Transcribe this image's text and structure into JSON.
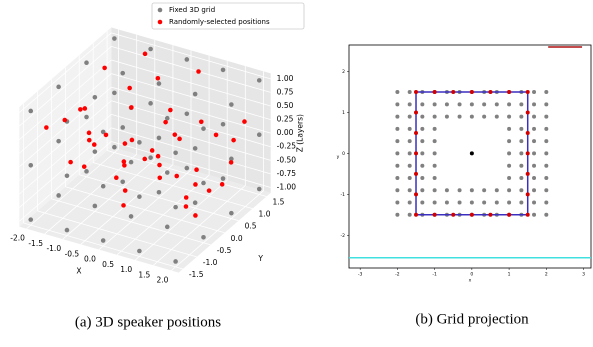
{
  "chart_data": [
    {
      "type": "scatter3d",
      "caption": "(a) 3D speaker positions",
      "xlabel": "X",
      "ylabel": "Y",
      "zlabel": "Z (Layers)",
      "legend": "upper right",
      "xlim": [
        -2.2,
        2.2
      ],
      "ylim": [
        -1.65,
        1.65
      ],
      "zlim": [
        -1.1,
        1.1
      ],
      "xticks": [
        {
          "value": -2,
          "label": "-2.0"
        },
        -1.5,
        {
          "value": -1,
          "label": "-1.0"
        },
        -0.5,
        {
          "value": 0,
          "label": "0.0"
        },
        0.5,
        {
          "value": 1,
          "label": "1.0"
        },
        1.5,
        {
          "value": 2,
          "label": "2.0"
        }
      ],
      "yticks": [
        -1.5,
        {
          "value": -1,
          "label": "-1.0"
        },
        -0.5,
        {
          "value": 0,
          "label": "0.0"
        },
        0.5,
        {
          "value": 1,
          "label": "1.0"
        },
        1.5
      ],
      "zticks": [
        {
          "value": -1,
          "label": "-1.00"
        },
        -0.75,
        {
          "value": -0.5,
          "label": "-0.50"
        },
        -0.25,
        {
          "value": 0,
          "label": "0.00"
        },
        0.25,
        {
          "value": 0.5,
          "label": "0.50"
        },
        0.75,
        {
          "value": 1,
          "label": "1.00"
        }
      ],
      "series": [
        {
          "name": "Fixed 3D grid",
          "color": "#808080",
          "x": [
            -2,
            -1,
            0,
            1,
            2,
            -2,
            -1,
            0,
            1,
            2,
            -2,
            -1,
            0,
            1,
            2,
            -2,
            -1,
            0,
            1,
            2,
            -2,
            -1,
            0,
            1,
            2,
            -2,
            -1,
            0,
            1,
            2,
            -2,
            -1,
            0,
            1,
            2,
            -2,
            -1,
            0,
            1,
            2,
            -2,
            -1,
            0,
            1,
            2,
            -2,
            -1,
            0,
            1,
            2,
            -2,
            -1,
            0,
            1,
            2,
            -2,
            -1,
            0,
            1,
            2
          ],
          "y": [
            -1.5,
            -1.5,
            -1.5,
            -1.5,
            -1.5,
            -0.5,
            -0.5,
            -0.5,
            -0.5,
            -0.5,
            0.5,
            0.5,
            0.5,
            0.5,
            0.5,
            1.5,
            1.5,
            1.5,
            1.5,
            1.5,
            -1.5,
            -1.5,
            -1.5,
            -1.5,
            -1.5,
            -0.5,
            -0.5,
            -0.5,
            -0.5,
            -0.5,
            0.5,
            0.5,
            0.5,
            0.5,
            0.5,
            1.5,
            1.5,
            1.5,
            1.5,
            1.5,
            -1.5,
            -1.5,
            -1.5,
            -1.5,
            -1.5,
            -0.5,
            -0.5,
            -0.5,
            -0.5,
            -0.5,
            0.5,
            0.5,
            0.5,
            0.5,
            0.5,
            1.5,
            1.5,
            1.5,
            1.5,
            1.5
          ],
          "z": [
            -1,
            -1,
            -1,
            -1,
            -1,
            -1,
            -1,
            -1,
            -1,
            -1,
            -1,
            -1,
            -1,
            -1,
            -1,
            -1,
            -1,
            -1,
            -1,
            -1,
            0,
            0,
            0,
            0,
            0,
            0,
            0,
            0,
            0,
            0,
            0,
            0,
            0,
            0,
            0,
            0,
            0,
            0,
            0,
            0,
            1,
            1,
            1,
            1,
            1,
            1,
            1,
            1,
            1,
            1,
            1,
            1,
            1,
            1,
            1,
            1,
            1,
            1,
            1,
            1
          ]
        },
        {
          "name": "Randomly-selected positions",
          "color": "#ff0000",
          "x": [
            -1.8,
            -1.2,
            0.4,
            1.6,
            -0.6,
            0.9,
            1.9,
            -1.5,
            0.1,
            -0.3,
            1.2,
            -1.9,
            0.7,
            1.4,
            -1.0,
            0.3,
            -0.8,
            1.7,
            -1.3,
            0.6,
            -0.1,
            1.0,
            -1.6,
            0.8,
            1.3,
            -0.5,
            0.2,
            -1.1,
            1.8,
            -0.9,
            0.5,
            -1.4,
            1.1,
            -0.2,
            1.5,
            -1.7,
            0.0,
            0.9,
            -0.7,
            1.6,
            -1.2,
            0.4,
            -0.4,
            1.9,
            -1.0
          ],
          "y": [
            -1.2,
            0.8,
            1.4,
            -0.6,
            -1.4,
            0.3,
            1.1,
            0.5,
            -0.9,
            1.3,
            -1.3,
            -0.2,
            0.9,
            0.2,
            -0.7,
            -1.1,
            1.5,
            -0.4,
            1.2,
            -1.5,
            0.6,
            1.0,
            -0.8,
            -0.3,
            1.4,
            0.1,
            -1.0,
            0.4,
            -1.2,
            0.7,
            1.2,
            -0.5,
            -0.9,
            1.5,
            0.6,
            0.2,
            -1.4,
            -0.1,
            0.9,
            1.1,
            -0.6,
            0.0,
            -1.3,
            0.3,
            1.3
          ],
          "z": [
            0.6,
            -0.8,
            0.9,
            -0.3,
            0.2,
            -1.0,
            0.4,
            1.0,
            -0.6,
            0.1,
            0.8,
            -0.5,
            -0.9,
            0.7,
            0.3,
            -0.2,
            0.5,
            -0.7,
            0.0,
            0.9,
            -0.4,
            -1.0,
            0.6,
            0.8,
            -0.6,
            1.0,
            0.2,
            -0.9,
            0.4,
            -0.3,
            -0.8,
            0.7,
            0.1,
            -0.5,
            0.3,
            -0.1,
            0.9,
            0.5,
            -0.7,
            0.0,
            0.8,
            -0.2,
            0.6,
            -0.4,
            1.0
          ]
        }
      ]
    },
    {
      "type": "scatter",
      "caption": "(b) Grid projection",
      "xlabel": "x",
      "ylabel": "y",
      "xlim": [
        -3.3,
        3.2
      ],
      "ylim": [
        -2.8,
        2.65
      ],
      "xticks": [
        -3,
        -2,
        -1,
        0,
        1,
        2,
        3
      ],
      "yticks": [
        -2,
        -1,
        0,
        1,
        2
      ],
      "series": [
        {
          "kind": "points",
          "color": "#808080",
          "x": [
            -2,
            -1.67,
            -1.33,
            -1,
            -0.67,
            -0.33,
            0,
            0.33,
            0.67,
            1,
            1.33,
            1.67,
            2,
            -2,
            -1.67,
            -1.33,
            -1,
            -0.67,
            -0.33,
            0,
            0.33,
            0.67,
            1,
            1.33,
            1.67,
            2,
            -2,
            -1.67,
            -1.33,
            -1,
            -0.67,
            -0.33,
            0,
            0.33,
            0.67,
            1,
            1.33,
            1.67,
            2,
            -2,
            -1.67,
            -1.33,
            -1,
            1,
            1.33,
            1.67,
            2,
            -2,
            -1.67,
            -1.33,
            -1,
            1,
            1.33,
            1.67,
            2,
            -2,
            -1.67,
            -1.33,
            -1,
            1,
            1.33,
            1.67,
            2,
            -2,
            -1.67,
            -1.33,
            -1,
            1,
            1.33,
            1.67,
            2,
            -2,
            -1.67,
            -1.33,
            -1,
            1,
            1.33,
            1.67,
            2,
            -2,
            -1.67,
            -1.33,
            -1,
            -0.67,
            -0.33,
            0,
            0.33,
            0.67,
            1,
            1.33,
            1.67,
            2,
            -2,
            -1.67,
            -1.33,
            -1,
            -0.67,
            -0.33,
            0,
            0.33,
            0.67,
            1,
            1.33,
            1.67,
            2,
            -2,
            -1.67,
            -1.33,
            -1,
            -0.67,
            -0.33,
            0,
            0.33,
            0.67,
            1,
            1.33,
            1.67,
            2
          ],
          "y": [
            1.5,
            1.5,
            1.5,
            1.5,
            1.5,
            1.5,
            1.5,
            1.5,
            1.5,
            1.5,
            1.5,
            1.5,
            1.5,
            1.2,
            1.2,
            1.2,
            1.2,
            1.2,
            1.2,
            1.2,
            1.2,
            1.2,
            1.2,
            1.2,
            1.2,
            1.2,
            0.9,
            0.9,
            0.9,
            0.9,
            0.9,
            0.9,
            0.9,
            0.9,
            0.9,
            0.9,
            0.9,
            0.9,
            0.9,
            0.6,
            0.6,
            0.6,
            0.6,
            0.6,
            0.6,
            0.6,
            0.6,
            0.3,
            0.3,
            0.3,
            0.3,
            0.3,
            0.3,
            0.3,
            0.3,
            0,
            0,
            0,
            0,
            0,
            0,
            0,
            0,
            -0.3,
            -0.3,
            -0.3,
            -0.3,
            -0.3,
            -0.3,
            -0.3,
            -0.3,
            -0.6,
            -0.6,
            -0.6,
            -0.6,
            -0.6,
            -0.6,
            -0.6,
            -0.6,
            -0.9,
            -0.9,
            -0.9,
            -0.9,
            -0.9,
            -0.9,
            -0.9,
            -0.9,
            -0.9,
            -0.9,
            -0.9,
            -0.9,
            -0.9,
            -1.2,
            -1.2,
            -1.2,
            -1.2,
            -1.2,
            -1.2,
            -1.2,
            -1.2,
            -1.2,
            -1.2,
            -1.2,
            -1.2,
            -1.2,
            -1.5,
            -1.5,
            -1.5,
            -1.5,
            -1.5,
            -1.5,
            -1.5,
            -1.5,
            -1.5,
            -1.5,
            -1.5,
            -1.5,
            -1.5
          ]
        },
        {
          "kind": "line",
          "color": "#3a2fbf",
          "x": [
            -1.5,
            1.5,
            1.5,
            -1.5,
            -1.5
          ],
          "y": [
            1.5,
            1.5,
            -1.5,
            -1.5,
            1.5
          ]
        },
        {
          "kind": "points",
          "color": "#d40000",
          "x": [
            -1.5,
            -1,
            -0.5,
            0,
            0.5,
            1,
            1.5,
            -1.5,
            -1,
            -0.5,
            0,
            0.5,
            1,
            1.5,
            -1.5,
            -1.5,
            -1.5,
            -1.5,
            -1.5,
            1.5,
            1.5,
            1.5,
            1.5,
            1.5
          ],
          "y": [
            1.5,
            1.5,
            1.5,
            1.5,
            1.5,
            1.5,
            1.5,
            -1.5,
            -1.5,
            -1.5,
            -1.5,
            -1.5,
            -1.5,
            -1.5,
            -1,
            -0.5,
            0,
            0.5,
            1,
            -1,
            -0.5,
            0,
            0.5,
            1
          ]
        },
        {
          "kind": "points",
          "color": "#000000",
          "x": [
            0
          ],
          "y": [
            0
          ]
        },
        {
          "kind": "line",
          "color": "#b01010",
          "x": [
            2.05,
            2.96
          ],
          "y": [
            2.6,
            2.6
          ]
        },
        {
          "kind": "line",
          "color": "#40e0e0",
          "x": [
            -3.3,
            3.2
          ],
          "y": [
            -2.55,
            -2.55
          ]
        }
      ]
    }
  ]
}
